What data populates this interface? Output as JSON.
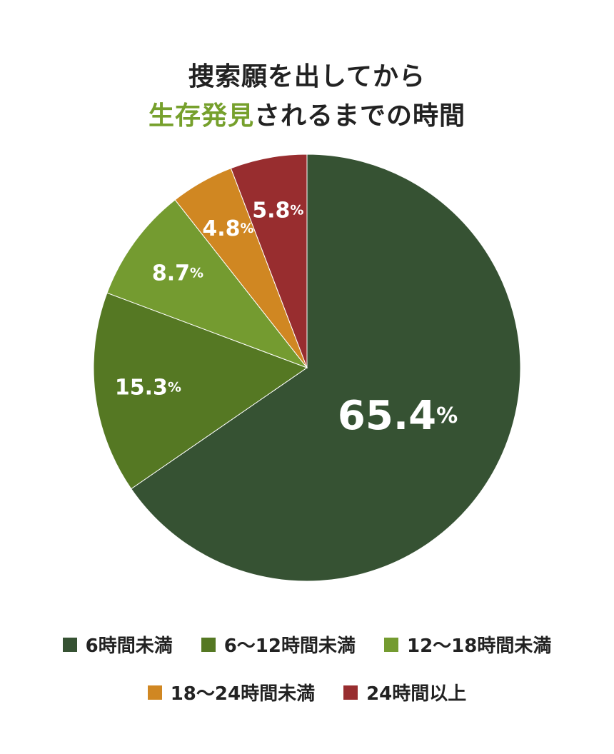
{
  "chart_data": {
    "type": "pie",
    "title_line1": "捜索願を出してから",
    "title_line2_accent": "生存発見",
    "title_line2_rest": "されるまでの時間",
    "title_accent_color": "#76a02c",
    "slices": [
      {
        "label": "6時間未満",
        "value": 65.4,
        "display": "65.4",
        "color": "#365233"
      },
      {
        "label": "6〜12時間未満",
        "value": 15.3,
        "display": "15.3",
        "color": "#557823"
      },
      {
        "label": "12〜18時間未満",
        "value": 8.7,
        "display": "8.7",
        "color": "#749b30"
      },
      {
        "label": "18〜24時間未満",
        "value": 4.8,
        "display": "4.8",
        "color": "#d08722"
      },
      {
        "label": "24時間以上",
        "value": 5.8,
        "display": "5.8",
        "color": "#982d2f"
      }
    ],
    "unit": "%",
    "legend_position": "bottom"
  }
}
